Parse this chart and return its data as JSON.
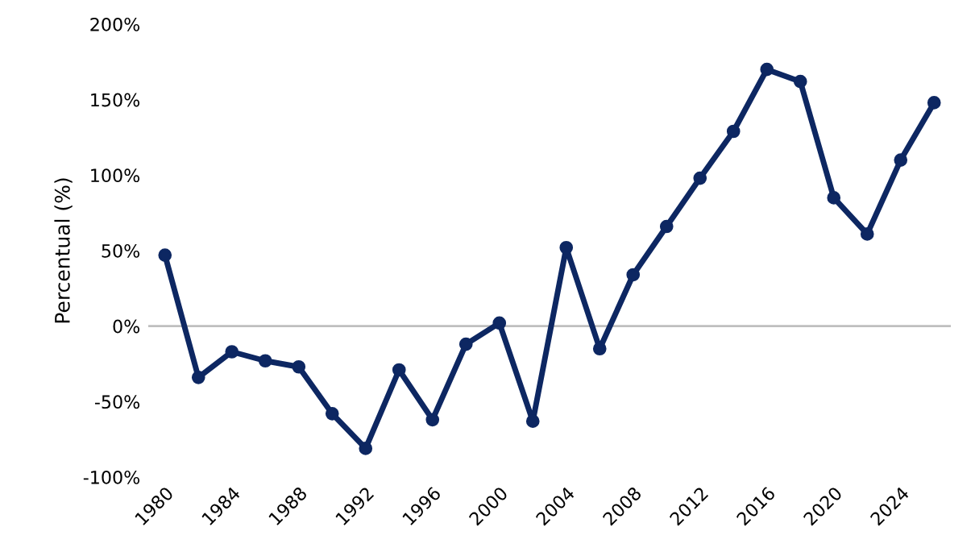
{
  "chart_data": {
    "type": "line",
    "ylabel": "Percentual (%)",
    "x": [
      1980,
      1982,
      1984,
      1986,
      1988,
      1990,
      1992,
      1994,
      1996,
      1998,
      2000,
      2002,
      2004,
      2006,
      2008,
      2010,
      2012,
      2014,
      2016,
      2018,
      2020,
      2022,
      2024,
      2026
    ],
    "series": [
      {
        "color": "#0d2762",
        "values": [
          47,
          -34,
          -17,
          -23,
          -27,
          -58,
          -81,
          -29,
          -62,
          -12,
          2,
          -63,
          52,
          -15,
          34,
          66,
          98,
          129,
          170,
          162,
          85,
          61,
          110,
          148
        ]
      }
    ],
    "xlim": [
      1979,
      2027
    ],
    "xticks": [
      1980,
      1984,
      1988,
      1992,
      1996,
      2000,
      2004,
      2008,
      2012,
      2016,
      2020,
      2024
    ],
    "ylim": [
      -100,
      200
    ],
    "yticks": [
      {
        "value": -100,
        "label": "-100%"
      },
      {
        "value": -50,
        "label": "-50%"
      },
      {
        "value": 0,
        "label": "0%"
      },
      {
        "value": 50,
        "label": "50%"
      },
      {
        "value": 100,
        "label": "100%"
      },
      {
        "value": 150,
        "label": "150%"
      },
      {
        "value": 200,
        "label": "200%"
      }
    ],
    "ref_lines": [
      {
        "axis": "y",
        "value": 0,
        "color": "#bfbfbf"
      }
    ],
    "grid": false,
    "legend": false,
    "marker": "circle",
    "line_style": "solid"
  }
}
